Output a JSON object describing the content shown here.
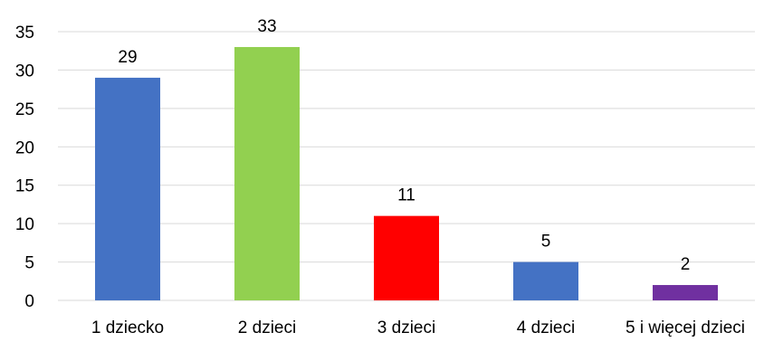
{
  "chart_data": {
    "type": "bar",
    "title": "",
    "xlabel": "",
    "ylabel": "",
    "categories": [
      "1 dziecko",
      "2 dzieci",
      "3 dzieci",
      "4 dzieci",
      "5 i więcej dzieci"
    ],
    "values": [
      29,
      33,
      11,
      5,
      2
    ],
    "colors": [
      "#4472C4",
      "#92D050",
      "#FF0000",
      "#4472C4",
      "#7030A0"
    ],
    "ylim": [
      0,
      35
    ],
    "yticks": [
      0,
      5,
      10,
      15,
      20,
      25,
      30,
      35
    ],
    "grid": true,
    "gridColor": "#D9D9D9",
    "legend": false
  }
}
